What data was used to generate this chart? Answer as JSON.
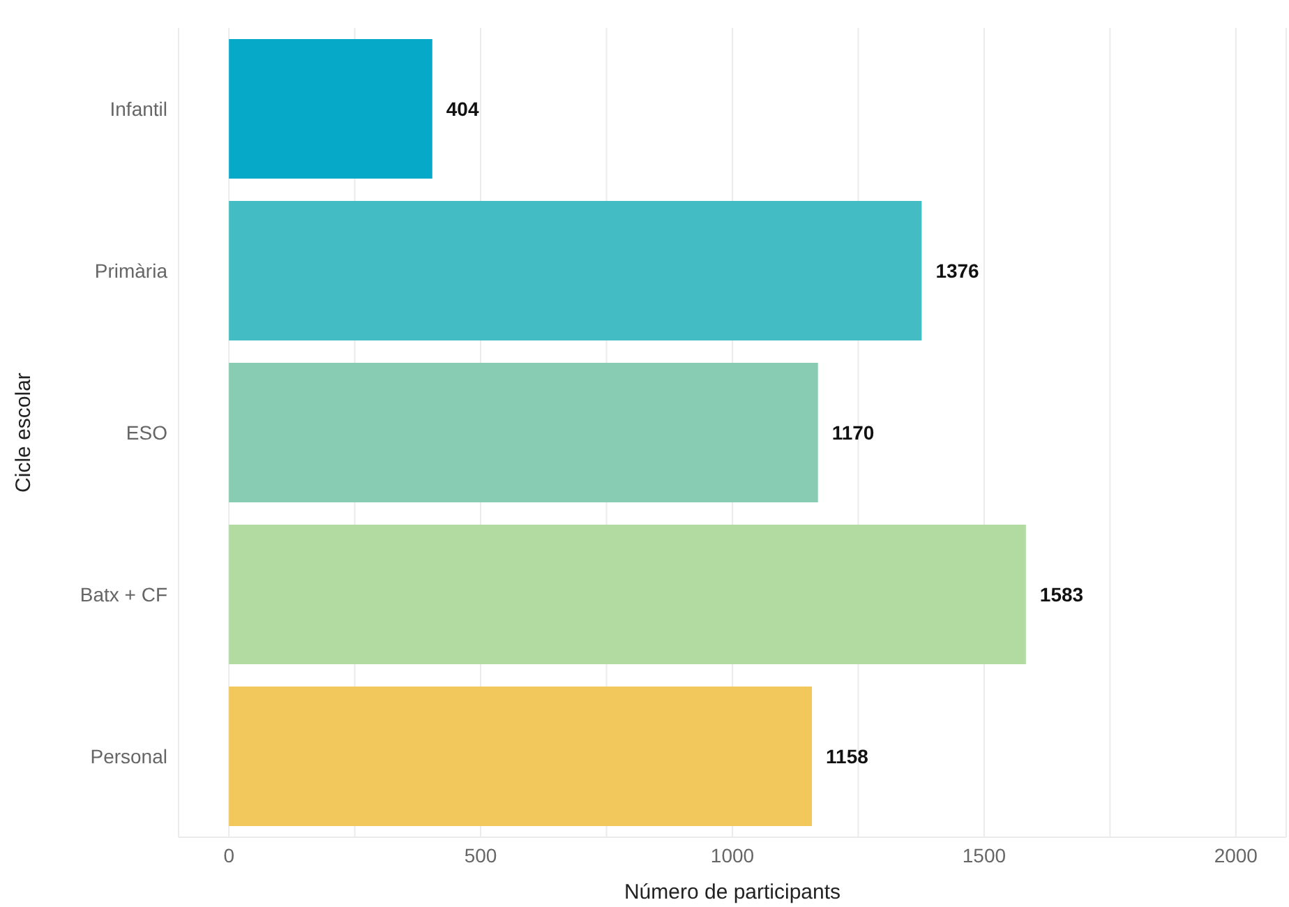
{
  "chart_data": {
    "type": "bar",
    "orientation": "horizontal",
    "xlabel": "Número de participants",
    "ylabel": "Cicle escolar",
    "categories": [
      "Infantil",
      "Primària",
      "ESO",
      "Batx + CF",
      "Personal"
    ],
    "values": [
      404,
      1376,
      1170,
      1583,
      1158
    ],
    "colors": [
      "#07a9c9",
      "#43bcc4",
      "#88cdb3",
      "#b2dba1",
      "#f2c85c"
    ],
    "data_labels": true,
    "xlim": [
      -100,
      2100
    ],
    "xticks": [
      0,
      {
        "value": 250,
        "label": null
      },
      500,
      {
        "value": 750,
        "label": null
      },
      1000,
      {
        "value": 1250,
        "label": null
      },
      1500,
      {
        "value": 1750,
        "label": null
      },
      2000
    ],
    "grid": "x",
    "legend": false
  }
}
